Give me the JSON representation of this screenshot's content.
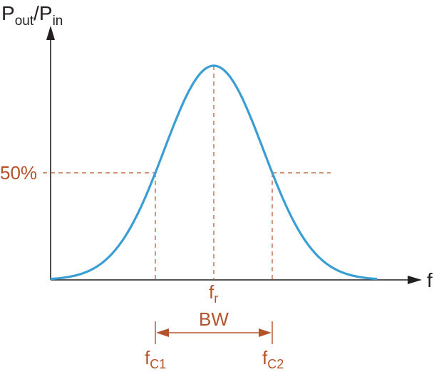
{
  "axes": {
    "y_label_main": "P",
    "y_label_sub1": "out",
    "y_label_sep": "/P",
    "y_label_sub2": "in",
    "x_label": "f"
  },
  "markers": {
    "half_power_label": "50%",
    "fr_main": "f",
    "fr_sub": "r",
    "fc1_main": "f",
    "fc1_sub": "C1",
    "fc2_main": "f",
    "fc2_sub": "C2",
    "bandwidth_label": "BW"
  },
  "colors": {
    "curve": "#3b9ed3",
    "axes": "#231f20",
    "annotation": "#b5532a"
  }
}
